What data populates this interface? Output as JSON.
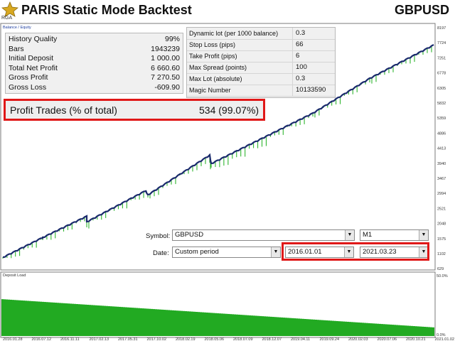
{
  "header": {
    "title": "PARIS Static Mode Backtest",
    "symbol": "GBPUSD",
    "logo_text": "RGA"
  },
  "chart_top": {
    "legend": "Balance / Equity",
    "y_ticks": [
      "8197",
      "7724",
      "7251",
      "6778",
      "6305",
      "5832",
      "5359",
      "4886",
      "4413",
      "3940",
      "3467",
      "2994",
      "2521",
      "2048",
      "1575",
      "1102",
      "629"
    ]
  },
  "stats": [
    {
      "label": "History Quality",
      "value": "99%"
    },
    {
      "label": "Bars",
      "value": "1943239"
    },
    {
      "label": "Initial Deposit",
      "value": "1 000.00"
    },
    {
      "label": "Total Net Profit",
      "value": "6 660.60"
    },
    {
      "label": "Gross Profit",
      "value": "7 270.50"
    },
    {
      "label": "Gross Loss",
      "value": "-609.90"
    }
  ],
  "params": [
    {
      "label": "Dynamic lot (per 1000 balance)",
      "value": "0.3"
    },
    {
      "label": "Stop Loss (pips)",
      "value": "66"
    },
    {
      "label": "Take Profit (pips)",
      "value": "6"
    },
    {
      "label": "Max Spread (points)",
      "value": "100"
    },
    {
      "label": "Max Lot (absolute)",
      "value": "0.3"
    },
    {
      "label": "Magic Number",
      "value": "10133590"
    }
  ],
  "profit_trades": {
    "label": "Profit Trades (% of total)",
    "value": "534 (99.07%)"
  },
  "controls": {
    "symbol_label": "Symbol:",
    "symbol_value": "GBPUSD",
    "timeframe": "M1",
    "date_label": "Date:",
    "period": "Custom period",
    "from": "2016.01.01",
    "to": "2021.03.23"
  },
  "deposit_load": {
    "title": "Deposit Load",
    "y_ticks": [
      "50.0%",
      "0.0%"
    ],
    "x_ticks": [
      "2016.01.28",
      "2016.07.12",
      "2016.11.11",
      "2017.02.13",
      "2017.05.31",
      "2017.10.02",
      "2018.02.19",
      "2018.05.06",
      "2018.07.09",
      "2018.12.07",
      "2019.04.11",
      "2019.09.24",
      "2020.02.03",
      "2020.07.06",
      "2020.10.21",
      "2021.01.02"
    ]
  },
  "colors": {
    "balance": "#1a2a6c",
    "equity_bar": "#2fb52f",
    "highlight": "#e01818",
    "load": "#22aa22"
  }
}
